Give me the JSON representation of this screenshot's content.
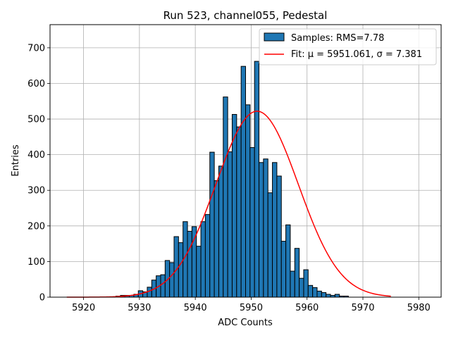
{
  "chart_data": {
    "type": "bar",
    "title": "Run 523, channel055, Pedestal",
    "xlabel": "ADC Counts",
    "ylabel": "Entries",
    "xlim": [
      5914,
      5984
    ],
    "ylim": [
      0,
      765
    ],
    "xticks": [
      5920,
      5930,
      5940,
      5950,
      5960,
      5970,
      5980
    ],
    "yticks": [
      0,
      100,
      200,
      300,
      400,
      500,
      600,
      700
    ],
    "grid": true,
    "legend_position": "top-right",
    "histogram": {
      "name": "Samples: RMS=7.78",
      "color": "#1f77b4",
      "edge_color": "#000000",
      "bin_start": 5917,
      "bin_width": 0.8,
      "counts": [
        0,
        0,
        0,
        0,
        0,
        0,
        0,
        0,
        0,
        0,
        0,
        3,
        5,
        5,
        5,
        8,
        18,
        15,
        28,
        48,
        60,
        63,
        103,
        97,
        170,
        153,
        212,
        185,
        198,
        143,
        212,
        232,
        407,
        327,
        368,
        562,
        408,
        513,
        478,
        648,
        540,
        420,
        662,
        378,
        388,
        293,
        378,
        340,
        157,
        203,
        73,
        137,
        53,
        77,
        33,
        27,
        17,
        13,
        8,
        5,
        8,
        3,
        3,
        0,
        0
      ],
      "stat": "RMS=7.78"
    },
    "series": [
      {
        "name": "Fit: μ = 5951.061, σ = 7.381",
        "type": "line",
        "color": "#ff0000",
        "mu": 5951.061,
        "sigma": 7.381,
        "amplitude": 522,
        "x_range": [
          5917,
          5975
        ]
      }
    ],
    "legend": [
      {
        "label": "Samples: RMS=7.78",
        "kind": "patch",
        "color": "#1f77b4"
      },
      {
        "label": "Fit: μ = 5951.061, σ = 7.381",
        "kind": "line",
        "color": "#ff0000"
      }
    ]
  }
}
